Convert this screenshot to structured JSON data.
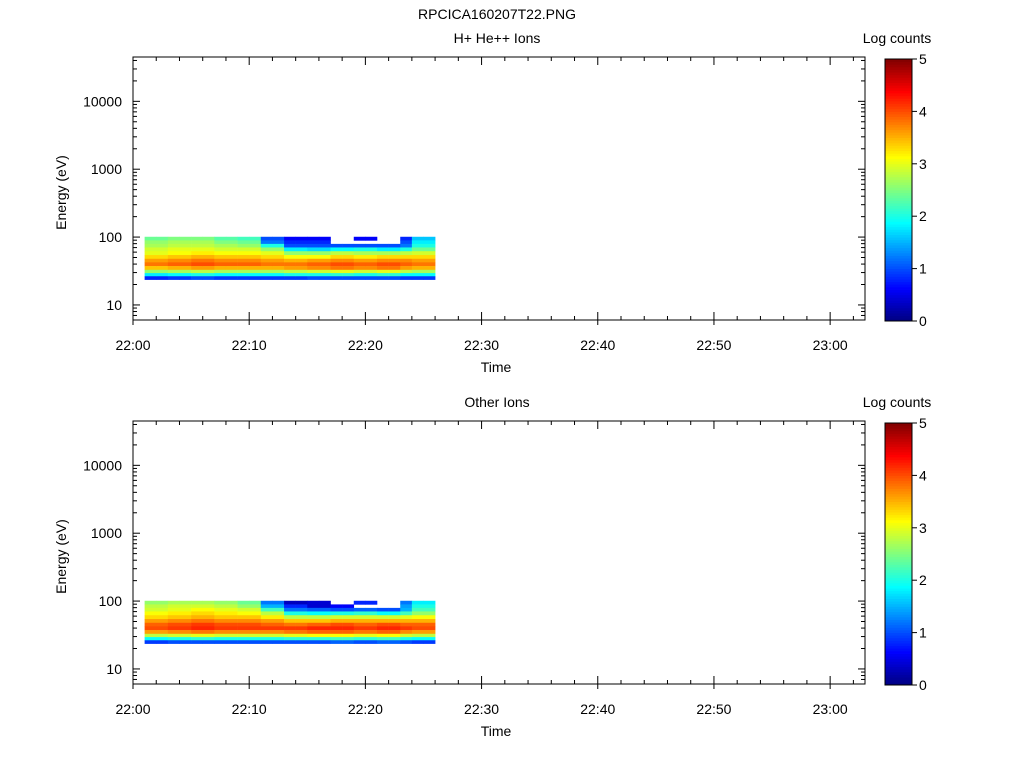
{
  "figure_title": "RPCICA160207T22.PNG",
  "colorbar": {
    "label": "Log counts",
    "ticks": [
      "0",
      "1",
      "2",
      "3",
      "4",
      "5"
    ],
    "min": 0,
    "max": 5,
    "colormap": "jet"
  },
  "chart_data": [
    {
      "type": "heatmap",
      "title": "H+ He++ Ions",
      "xlabel": "Time",
      "ylabel": "Energy (eV)",
      "xlim": [
        "22:00",
        "23:03"
      ],
      "xticks": [
        "22:00",
        "22:10",
        "22:20",
        "22:30",
        "22:40",
        "22:50",
        "23:00"
      ],
      "y_scale": "log",
      "ylim": [
        6,
        45000
      ],
      "yticks": [
        "10",
        "100",
        "1000",
        "10000"
      ],
      "time_step_min": 1,
      "energy_bins_eV": [
        95,
        84,
        75,
        66,
        58,
        51,
        45,
        40,
        35,
        31,
        28,
        25
      ],
      "columns": [
        {
          "t": "22:01",
          "v": [
            2.4,
            2.6,
            2.7,
            2.9,
            3.0,
            3.3,
            3.6,
            3.8,
            3.4,
            2.6,
            1.8,
            0.8
          ]
        },
        {
          "t": "22:02",
          "v": [
            2.4,
            2.6,
            2.7,
            2.9,
            3.0,
            3.3,
            3.6,
            3.8,
            3.4,
            2.6,
            1.8,
            0.8
          ]
        },
        {
          "t": "22:03",
          "v": [
            2.5,
            2.7,
            2.8,
            3.0,
            3.1,
            3.4,
            3.7,
            3.9,
            3.5,
            2.7,
            1.9,
            0.9
          ]
        },
        {
          "t": "22:04",
          "v": [
            2.5,
            2.7,
            2.8,
            3.0,
            3.1,
            3.4,
            3.7,
            3.9,
            3.5,
            2.7,
            1.9,
            0.9
          ]
        },
        {
          "t": "22:05",
          "v": [
            2.5,
            2.7,
            2.8,
            3.0,
            3.2,
            3.5,
            3.8,
            4.0,
            3.6,
            2.8,
            2.0,
            1.0
          ]
        },
        {
          "t": "22:06",
          "v": [
            2.5,
            2.7,
            2.8,
            3.0,
            3.2,
            3.5,
            3.8,
            4.0,
            3.6,
            2.8,
            2.0,
            1.0
          ]
        },
        {
          "t": "22:07",
          "v": [
            2.3,
            2.5,
            2.7,
            2.9,
            3.1,
            3.4,
            3.7,
            3.9,
            3.5,
            2.7,
            1.9,
            0.9
          ]
        },
        {
          "t": "22:08",
          "v": [
            2.3,
            2.5,
            2.7,
            2.9,
            3.1,
            3.4,
            3.7,
            3.9,
            3.5,
            2.7,
            1.9,
            0.9
          ]
        },
        {
          "t": "22:09",
          "v": [
            2.2,
            2.4,
            2.6,
            2.9,
            3.1,
            3.4,
            3.7,
            3.9,
            3.5,
            2.7,
            1.9,
            0.9
          ]
        },
        {
          "t": "22:10",
          "v": [
            2.2,
            2.4,
            2.6,
            2.9,
            3.1,
            3.4,
            3.7,
            3.9,
            3.5,
            2.7,
            1.9,
            0.9
          ]
        },
        {
          "t": "22:11",
          "v": [
            1.0,
            1.2,
            2.0,
            2.6,
            3.0,
            3.3,
            3.6,
            3.8,
            3.5,
            2.7,
            1.9,
            0.9
          ]
        },
        {
          "t": "22:12",
          "v": [
            1.0,
            1.2,
            2.0,
            2.6,
            3.0,
            3.3,
            3.6,
            3.8,
            3.5,
            2.7,
            1.9,
            0.9
          ]
        },
        {
          "t": "22:13",
          "v": [
            0.6,
            0.8,
            1.0,
            1.8,
            2.6,
            3.1,
            3.5,
            3.8,
            3.6,
            2.8,
            2.0,
            0.9
          ]
        },
        {
          "t": "22:14",
          "v": [
            0.6,
            0.8,
            1.0,
            1.8,
            2.6,
            3.1,
            3.5,
            3.8,
            3.6,
            2.8,
            2.0,
            0.9
          ]
        },
        {
          "t": "22:15",
          "v": [
            0.6,
            0.8,
            1.0,
            1.7,
            2.6,
            3.1,
            3.6,
            3.9,
            3.7,
            2.9,
            2.0,
            1.0
          ]
        },
        {
          "t": "22:16",
          "v": [
            0.6,
            0.8,
            1.0,
            1.7,
            2.6,
            3.1,
            3.6,
            3.9,
            3.7,
            2.9,
            2.0,
            1.0
          ]
        },
        {
          "t": "22:17",
          "v": [
            null,
            null,
            1.0,
            1.9,
            2.8,
            3.3,
            3.7,
            4.0,
            3.8,
            3.0,
            2.1,
            1.0
          ]
        },
        {
          "t": "22:18",
          "v": [
            null,
            null,
            1.0,
            1.9,
            2.8,
            3.3,
            3.7,
            4.0,
            3.8,
            3.0,
            2.1,
            1.0
          ]
        },
        {
          "t": "22:19",
          "v": [
            0.6,
            null,
            1.0,
            2.0,
            2.7,
            3.2,
            3.6,
            3.9,
            3.7,
            2.9,
            2.0,
            1.0
          ]
        },
        {
          "t": "22:20",
          "v": [
            0.6,
            null,
            1.0,
            2.0,
            2.7,
            3.2,
            3.6,
            3.9,
            3.7,
            2.9,
            2.0,
            1.0
          ]
        },
        {
          "t": "22:21",
          "v": [
            null,
            null,
            1.0,
            1.8,
            2.7,
            3.3,
            3.7,
            4.0,
            3.8,
            3.0,
            2.1,
            1.0
          ]
        },
        {
          "t": "22:22",
          "v": [
            null,
            null,
            1.0,
            1.8,
            2.7,
            3.3,
            3.7,
            4.0,
            3.8,
            3.0,
            2.1,
            1.0
          ]
        },
        {
          "t": "22:23",
          "v": [
            0.8,
            1.0,
            1.2,
            2.0,
            2.8,
            3.3,
            3.7,
            3.9,
            3.6,
            2.8,
            1.9,
            0.9
          ]
        },
        {
          "t": "22:24",
          "v": [
            1.6,
            1.8,
            2.0,
            2.4,
            2.9,
            3.3,
            3.6,
            3.8,
            3.5,
            2.7,
            1.9,
            0.9
          ]
        },
        {
          "t": "22:25",
          "v": [
            1.6,
            1.8,
            2.0,
            2.4,
            2.9,
            3.3,
            3.6,
            3.8,
            3.5,
            2.7,
            1.9,
            0.9
          ]
        }
      ]
    },
    {
      "type": "heatmap",
      "title": "Other Ions",
      "xlabel": "Time",
      "ylabel": "Energy (eV)",
      "xlim": [
        "22:00",
        "23:03"
      ],
      "xticks": [
        "22:00",
        "22:10",
        "22:20",
        "22:30",
        "22:40",
        "22:50",
        "23:00"
      ],
      "y_scale": "log",
      "ylim": [
        6,
        45000
      ],
      "yticks": [
        "10",
        "100",
        "1000",
        "10000"
      ],
      "time_step_min": 1,
      "energy_bins_eV": [
        95,
        84,
        75,
        66,
        58,
        51,
        45,
        40,
        35,
        31,
        28,
        25
      ],
      "columns": [
        {
          "t": "22:01",
          "v": [
            2.6,
            2.8,
            2.9,
            3.1,
            3.3,
            3.6,
            3.9,
            4.0,
            3.6,
            2.8,
            1.9,
            0.9
          ]
        },
        {
          "t": "22:02",
          "v": [
            2.6,
            2.8,
            2.9,
            3.1,
            3.3,
            3.6,
            3.9,
            4.0,
            3.6,
            2.8,
            1.9,
            0.9
          ]
        },
        {
          "t": "22:03",
          "v": [
            2.7,
            2.9,
            3.0,
            3.2,
            3.4,
            3.7,
            4.0,
            4.1,
            3.7,
            2.9,
            2.0,
            1.0
          ]
        },
        {
          "t": "22:04",
          "v": [
            2.7,
            2.9,
            3.0,
            3.2,
            3.4,
            3.7,
            4.0,
            4.1,
            3.7,
            2.9,
            2.0,
            1.0
          ]
        },
        {
          "t": "22:05",
          "v": [
            2.7,
            2.9,
            3.1,
            3.3,
            3.5,
            3.8,
            4.1,
            4.2,
            3.8,
            3.0,
            2.1,
            1.0
          ]
        },
        {
          "t": "22:06",
          "v": [
            2.7,
            2.9,
            3.1,
            3.3,
            3.5,
            3.8,
            4.1,
            4.2,
            3.8,
            3.0,
            2.1,
            1.0
          ]
        },
        {
          "t": "22:07",
          "v": [
            2.6,
            2.8,
            3.0,
            3.2,
            3.4,
            3.7,
            4.0,
            4.1,
            3.7,
            2.9,
            2.0,
            1.0
          ]
        },
        {
          "t": "22:08",
          "v": [
            2.6,
            2.8,
            3.0,
            3.2,
            3.4,
            3.7,
            4.0,
            4.1,
            3.7,
            2.9,
            2.0,
            1.0
          ]
        },
        {
          "t": "22:09",
          "v": [
            2.4,
            2.6,
            2.9,
            3.1,
            3.4,
            3.7,
            4.0,
            4.1,
            3.7,
            2.9,
            2.0,
            1.0
          ]
        },
        {
          "t": "22:10",
          "v": [
            2.4,
            2.6,
            2.9,
            3.1,
            3.4,
            3.7,
            4.0,
            4.1,
            3.7,
            2.9,
            2.0,
            1.0
          ]
        },
        {
          "t": "22:11",
          "v": [
            1.2,
            1.5,
            2.2,
            2.8,
            3.2,
            3.6,
            3.9,
            4.1,
            3.7,
            2.9,
            2.0,
            1.0
          ]
        },
        {
          "t": "22:12",
          "v": [
            1.2,
            1.5,
            2.2,
            2.8,
            3.2,
            3.6,
            3.9,
            4.1,
            3.7,
            2.9,
            2.0,
            1.0
          ]
        },
        {
          "t": "22:13",
          "v": [
            0.3,
            0.8,
            1.2,
            2.0,
            2.8,
            3.4,
            3.8,
            4.1,
            3.8,
            3.0,
            2.1,
            1.0
          ]
        },
        {
          "t": "22:14",
          "v": [
            0.3,
            0.8,
            1.2,
            2.0,
            2.8,
            3.4,
            3.8,
            4.1,
            3.8,
            3.0,
            2.1,
            1.0
          ]
        },
        {
          "t": "22:15",
          "v": [
            0.4,
            0.4,
            1.1,
            1.9,
            2.8,
            3.4,
            3.9,
            4.2,
            3.9,
            3.1,
            2.1,
            1.0
          ]
        },
        {
          "t": "22:16",
          "v": [
            0.4,
            0.4,
            1.1,
            1.9,
            2.8,
            3.4,
            3.9,
            4.2,
            3.9,
            3.1,
            2.1,
            1.0
          ]
        },
        {
          "t": "22:17",
          "v": [
            null,
            0.6,
            1.0,
            2.0,
            2.9,
            3.5,
            4.0,
            4.2,
            3.9,
            3.1,
            2.2,
            1.1
          ]
        },
        {
          "t": "22:18",
          "v": [
            null,
            0.6,
            1.0,
            2.0,
            2.9,
            3.5,
            4.0,
            4.2,
            3.9,
            3.1,
            2.2,
            1.1
          ]
        },
        {
          "t": "22:19",
          "v": [
            0.8,
            null,
            1.1,
            2.1,
            2.9,
            3.5,
            3.9,
            4.1,
            3.8,
            3.0,
            2.1,
            1.0
          ]
        },
        {
          "t": "22:20",
          "v": [
            0.8,
            null,
            1.1,
            2.1,
            2.9,
            3.5,
            3.9,
            4.1,
            3.8,
            3.0,
            2.1,
            1.0
          ]
        },
        {
          "t": "22:21",
          "v": [
            null,
            null,
            1.0,
            1.9,
            2.9,
            3.5,
            4.0,
            4.2,
            3.9,
            3.1,
            2.2,
            1.1
          ]
        },
        {
          "t": "22:22",
          "v": [
            null,
            null,
            1.0,
            1.9,
            2.9,
            3.5,
            4.0,
            4.2,
            3.9,
            3.1,
            2.2,
            1.1
          ]
        },
        {
          "t": "22:23",
          "v": [
            1.2,
            1.4,
            1.5,
            2.2,
            3.0,
            3.5,
            3.9,
            4.1,
            3.7,
            2.9,
            2.0,
            1.0
          ]
        },
        {
          "t": "22:24",
          "v": [
            1.8,
            2.0,
            2.2,
            2.6,
            3.1,
            3.5,
            3.9,
            4.0,
            3.6,
            2.8,
            1.9,
            0.9
          ]
        },
        {
          "t": "22:25",
          "v": [
            1.8,
            2.0,
            2.2,
            2.6,
            3.1,
            3.5,
            3.9,
            4.0,
            3.6,
            2.8,
            1.9,
            0.9
          ]
        }
      ]
    }
  ]
}
